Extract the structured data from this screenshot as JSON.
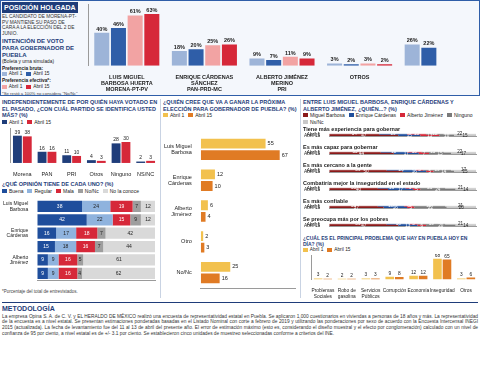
{
  "header": {
    "title": "POSICIÓN HOLGADA",
    "subtitle": "EL CANDIDATO DE MORENA-PT-PV MANTIENE SU PASO DE CARA A LA ELECCIÓN DEL 2 DE JUNIO."
  },
  "chart_data": [
    {
      "type": "bar",
      "title": "INTENCIÓN DE VOTO PARA GOBERNADOR DE PUEBLA",
      "subtitle": "(Boleta y urna simulada)",
      "footnote": "*Se restó a 100% no considera \"No/Nc\"",
      "categories": [
        "LUIS MIGUEL BARBOSA HUERTA",
        "ENRIQUE CÁRDENAS SÁNCHEZ",
        "ALBERTO JIMÉNEZ MERINO",
        "OTROS",
        null
      ],
      "parties": [
        "MORENA-PT-PV",
        "PAN-PRD-MC",
        "PRI",
        null,
        null
      ],
      "series": [
        {
          "name": "Abril 1",
          "group": "Preferencia bruta:",
          "color": "#9db4d8",
          "values": [
            40,
            18,
            9,
            3,
            26
          ],
          "value_labels": [
            "40%",
            "18%",
            "9%",
            "3%",
            "26%"
          ]
        },
        {
          "name": "Abril 15",
          "group": "Preferencia bruta:",
          "color": "#2f5ea8",
          "values": [
            46,
            20,
            7,
            2,
            22
          ],
          "value_labels": [
            "46%",
            "20%",
            "7%",
            "2%",
            "22%"
          ]
        },
        {
          "name": "Abril 1",
          "group": "Preferencia efectiva*:",
          "color": "#f2a3a3",
          "values": [
            61,
            25,
            11,
            3,
            null
          ],
          "value_labels": [
            "61%",
            "25%",
            "11%",
            "3%",
            null
          ]
        },
        {
          "name": "Abril 15",
          "group": "Preferencia efectiva*:",
          "color": "#d62839",
          "values": [
            63,
            26,
            9,
            2,
            null
          ],
          "value_labels": [
            "63%",
            "26%",
            "9%",
            "2%",
            null
          ]
        }
      ],
      "ylim": [
        0,
        75
      ],
      "grid": false,
      "data_labels": true,
      "tick_labels": "x"
    },
    {
      "type": "bar",
      "title": "INDEPENDIENTEMENTE DE POR QUIÉN HAYA VOTADO EN EL PASADO, ¿CON CUÁL PARTIDO SE IDENTIFICA USTED MÁS? (%)",
      "categories": [
        "Morena",
        "PAN",
        "PRI",
        "Otros",
        "Ninguno",
        "NS/NC"
      ],
      "series": [
        {
          "name": "Abril 1",
          "color": "#1f3d7a",
          "values": [
            39,
            16,
            11,
            4,
            28,
            2
          ]
        },
        {
          "name": "Abril 15",
          "color": "#d62839",
          "values": [
            38,
            16,
            10,
            3,
            30,
            3
          ]
        }
      ],
      "ylim": [
        0,
        50
      ],
      "grid": false,
      "data_labels": true,
      "tick_labels": "x"
    },
    {
      "type": "bar",
      "orientation": "horizontal",
      "stacked": true,
      "title": "¿QUÉ OPINIÓN TIENE DE CADA UNO? (%)",
      "footnote": "*Porcentaje del total de entrevistados.",
      "categories": [
        "Luis Miguel Barbosa",
        null,
        "Enrique Cárdenas",
        null,
        "Alberto Jiménez",
        null
      ],
      "series": [
        {
          "name": "Buena",
          "color": "#1f4e9c",
          "values": [
            38,
            42,
            16,
            15,
            9,
            9
          ]
        },
        {
          "name": "Regular",
          "color": "#8fb3de",
          "values": [
            24,
            22,
            17,
            18,
            9,
            9
          ]
        },
        {
          "name": "Mala",
          "color": "#d62839",
          "values": [
            19,
            15,
            18,
            16,
            16,
            16
          ]
        },
        {
          "name": "No/Nc",
          "color": "#9e9e9e",
          "values": [
            7,
            9,
            7,
            7,
            5,
            4
          ]
        },
        {
          "name": "No la conoce",
          "color": "#d9d9d9",
          "values": [
            12,
            12,
            42,
            44,
            61,
            62
          ]
        }
      ],
      "xlim": [
        0,
        100
      ],
      "grid": false,
      "data_labels": true,
      "tick_labels": "y"
    },
    {
      "type": "bar",
      "orientation": "horizontal",
      "title": "¿QUIÉN CREE QUE VA A GANAR LA PRÓXIMA ELECCIÓN PARA GOBERNADOR DE PUEBLA? (%)",
      "categories": [
        "Luis Miguel Barbosa",
        "Enrique Cárdenas",
        "Alberto Jiménez",
        "Otro",
        "No/Nc"
      ],
      "series": [
        {
          "name": "Abril 1",
          "color": "#f2c14e",
          "values": [
            55,
            12,
            6,
            2,
            25
          ]
        },
        {
          "name": "Abril 15",
          "color": "#e07b24",
          "values": [
            67,
            10,
            4,
            3,
            16
          ]
        }
      ],
      "xlim": [
        0,
        80
      ],
      "grid": false,
      "data_labels": true,
      "tick_labels": "y"
    },
    {
      "type": "bar",
      "orientation": "horizontal",
      "stacked": true,
      "title": "ENTRE LUIS MIGUEL BARBOSA, ENRIQUE CÁRDENAS Y ALBERTO JIMÉNEZ, ¿QUIÉN...? (%)",
      "categories": [
        "Abril 1",
        "Abril 15"
      ],
      "series": [
        {
          "name": "Miguel Barbosa",
          "color": "#8b1a1a"
        },
        {
          "name": "Enrique Cárdenas",
          "color": "#1f4e9c"
        },
        {
          "name": "Alberto Jiménez",
          "color": "#d62839"
        },
        {
          "name": "Ninguno",
          "color": "#7a7a7a"
        },
        {
          "name": "Ns/Nc",
          "color": "#c8c8c8"
        }
      ],
      "panels": [
        {
          "title": "Tiene más experiencia para gobernar",
          "series_values": [
            [
              34,
              47
            ],
            [
              19,
              15
            ],
            [
              13,
              13
            ],
            [
              12,
              10
            ],
            [
              22,
              15
            ]
          ]
        },
        {
          "title": "Es más capaz para gobernar",
          "series_values": [
            [
              35,
              44
            ],
            [
              18,
              17
            ],
            [
              10,
              7
            ],
            [
              15,
              15
            ],
            [
              22,
              17
            ]
          ]
        },
        {
          "title": "Es más cercano a la gente",
          "series_values": [
            [
              39,
              50
            ],
            [
              20,
              16
            ],
            [
              5,
              5
            ],
            [
              19,
              14
            ],
            [
              17,
              15
            ]
          ]
        },
        {
          "title": "Combatiría mejor la inseguridad en el estado",
          "series_values": [
            [
              33,
              40
            ],
            [
              19,
              17
            ],
            [
              6,
              5
            ],
            [
              21,
              24
            ],
            [
              21,
              14
            ]
          ]
        },
        {
          "title": "Es más confiable",
          "series_values": [
            [
              33,
              37
            ],
            [
              18,
              16
            ],
            [
              6,
              5
            ],
            [
              22,
              22
            ],
            [
              21,
              20
            ]
          ]
        },
        {
          "title": "Se preocupa más por los pobres",
          "series_values": [
            [
              39,
              47
            ],
            [
              16,
              13
            ],
            [
              5,
              6
            ],
            [
              19,
              20
            ],
            [
              21,
              14
            ]
          ]
        }
      ],
      "xlim": [
        0,
        100
      ],
      "grid": false,
      "data_labels": true,
      "tick_labels": "y"
    },
    {
      "type": "bar",
      "title": "¿CUÁL ES EL PRINCIPAL PROBLEMA QUE HAY EN PUEBLA HOY EN DÍA? (%)",
      "categories": [
        "Problemas Sociales",
        "Robo de gasolina",
        "Servicios Públicos",
        "Corrupción",
        "Economía",
        "Inseguridad",
        "Otros"
      ],
      "series": [
        {
          "name": "Abril 1",
          "color": "#f2c14e",
          "values": [
            3,
            2,
            3,
            9,
            12,
            68,
            3
          ]
        },
        {
          "name": "Abril 15",
          "color": "#e07b24",
          "values": [
            2,
            2,
            3,
            8,
            12,
            65,
            6
          ]
        }
      ],
      "ylim": [
        0,
        80
      ],
      "grid": false,
      "data_labels": true,
      "tick_labels": "x"
    }
  ],
  "methodology": {
    "title": "METODOLOGÍA",
    "text": "La empresa Opina S. A. de C. V. y EL HERALDO DE MÉXICO realizó una encuesta de representatividad estatal en Puebla. Se aplicaron 1,000 cuestionarios en viviendas a personas de 18 años y más. La representatividad de la encuesta es a nivel estatal. Se presentan estimaciones ponderadas basadas en el Listado Nominal con corte a febrero de 2019 y utilizando las ponderaciones por sexo de acuerdo con la Encuesta Intercensal INEGI 2015 (actualizada). La fecha de levantamiento fue del 11 al 13 de abril del presente año. El error de estimación máximo (esto es, considerando el diseño muestral y el efecto por conglomeración) calculado con un nivel de confianza de 95 por ciento, a nivel estatal es de +/- 3.1 por ciento. Se establecieron cinco unidades de muestreo seleccionadas conforme a criterios del INE."
  }
}
